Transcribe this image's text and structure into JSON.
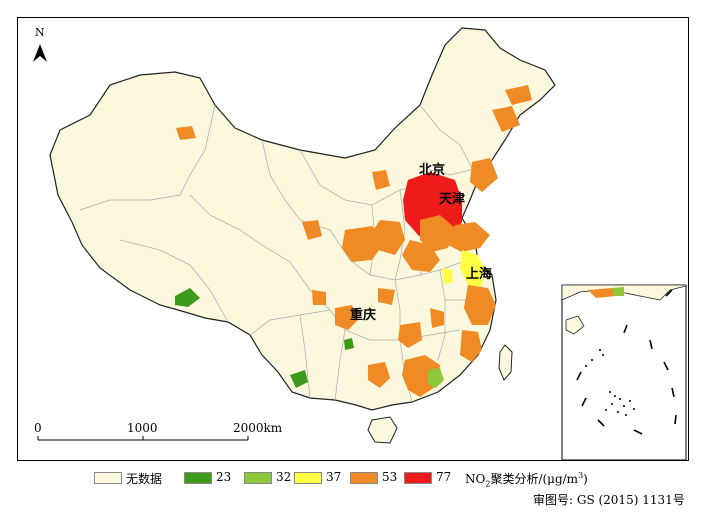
{
  "map": {
    "north_label": "N",
    "cities": {
      "beijing": "北京",
      "tianjin": "天津",
      "shanghai": "上海",
      "chongqing": "重庆"
    },
    "scale": {
      "start": "0",
      "mid": "1000",
      "end": "2000km"
    }
  },
  "legend": {
    "items": [
      {
        "label": "无数据",
        "color": "#fbf8dd"
      },
      {
        "label": "23",
        "color": "#3e9a1a"
      },
      {
        "label": "32",
        "color": "#8dc83a"
      },
      {
        "label": "37",
        "color": "#ffff44"
      },
      {
        "label": "53",
        "color": "#f08a24"
      },
      {
        "label": "77",
        "color": "#ee1b1b"
      }
    ],
    "title_prefix": "NO",
    "title_sub": "2",
    "title_mid": "聚类分析/(μg/m",
    "title_sup": "3",
    "title_suffix": ")"
  },
  "approval": "审图号: GS (2015) 1131号",
  "colors": {
    "border": "#999999",
    "boundary": "#222222"
  }
}
